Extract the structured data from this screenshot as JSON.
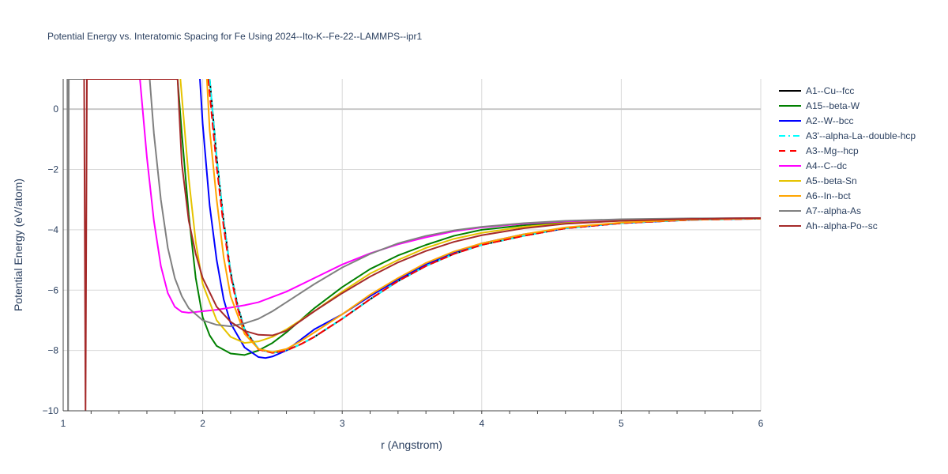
{
  "chart_data": {
    "type": "line",
    "title": "Potential Energy vs. Interatomic Spacing for Fe Using 2024--Ito-K--Fe-22--LAMMPS--ipr1",
    "xlabel": "r (Angstrom)",
    "ylabel": "Potential Energy (eV/atom)",
    "xlim": [
      1,
      6
    ],
    "ylim": [
      -10,
      1
    ],
    "x_ticks": [
      1,
      2,
      3,
      4,
      5,
      6
    ],
    "y_ticks": [
      0,
      -2,
      -4,
      -6,
      -8,
      -10
    ],
    "y_tick_labels": [
      "0",
      "−2",
      "−4",
      "−6",
      "−8",
      "−10"
    ],
    "grid": true,
    "legend_position": "right",
    "series": [
      {
        "name": "A1--Cu--fcc",
        "color": "#000000",
        "dash": "solid",
        "x": [
          2.05,
          2.1,
          2.15,
          2.2,
          2.25,
          2.3,
          2.4,
          2.5,
          2.6,
          2.7,
          2.8,
          3.0,
          3.2,
          3.4,
          3.6,
          3.8,
          4.0,
          4.3,
          4.6,
          5.0,
          5.5,
          6.0
        ],
        "y": [
          1.0,
          -1.6,
          -3.7,
          -5.4,
          -6.5,
          -7.3,
          -7.95,
          -8.08,
          -8.0,
          -7.8,
          -7.55,
          -6.95,
          -6.3,
          -5.7,
          -5.2,
          -4.8,
          -4.5,
          -4.2,
          -3.95,
          -3.78,
          -3.67,
          -3.63
        ]
      },
      {
        "name": "A15--beta-W",
        "color": "#008000",
        "dash": "solid",
        "x": [
          1.82,
          1.85,
          1.9,
          1.95,
          2.0,
          2.05,
          2.1,
          2.2,
          2.3,
          2.4,
          2.5,
          2.6,
          2.7,
          2.8,
          3.0,
          3.2,
          3.4,
          3.6,
          3.8,
          4.0,
          4.3,
          4.6,
          5.0,
          5.5,
          6.0
        ],
        "y": [
          1.0,
          -0.8,
          -3.5,
          -5.6,
          -6.9,
          -7.5,
          -7.85,
          -8.1,
          -8.15,
          -8.0,
          -7.75,
          -7.4,
          -7.0,
          -6.6,
          -5.9,
          -5.3,
          -4.85,
          -4.5,
          -4.2,
          -4.0,
          -3.85,
          -3.75,
          -3.68,
          -3.63,
          -3.61
        ]
      },
      {
        "name": "A2--W--bcc",
        "color": "#0000ff",
        "dash": "solid",
        "x": [
          1.98,
          2.0,
          2.05,
          2.1,
          2.15,
          2.2,
          2.3,
          2.4,
          2.45,
          2.5,
          2.6,
          2.7,
          2.8,
          3.0,
          3.2,
          3.4,
          3.6,
          3.8,
          4.0,
          4.3,
          4.6,
          5.0,
          5.5,
          6.0
        ],
        "y": [
          1.0,
          -0.5,
          -3.2,
          -5.0,
          -6.3,
          -7.1,
          -7.9,
          -8.22,
          -8.25,
          -8.2,
          -8.0,
          -7.65,
          -7.3,
          -6.8,
          -6.2,
          -5.65,
          -5.15,
          -4.75,
          -4.45,
          -4.15,
          -3.95,
          -3.78,
          -3.67,
          -3.62
        ]
      },
      {
        "name": "A3'--alpha-La--double-hcp",
        "color": "#00ffff",
        "dash": "dashdot",
        "x": [
          2.05,
          2.1,
          2.15,
          2.2,
          2.25,
          2.3,
          2.4,
          2.5,
          2.6,
          2.7,
          2.8,
          3.0,
          3.2,
          3.4,
          3.6,
          3.8,
          4.0,
          4.3,
          4.6,
          5.0,
          5.5,
          6.0
        ],
        "y": [
          1.0,
          -1.6,
          -3.7,
          -5.4,
          -6.5,
          -7.3,
          -7.95,
          -8.08,
          -8.0,
          -7.8,
          -7.55,
          -6.95,
          -6.3,
          -5.7,
          -5.2,
          -4.8,
          -4.5,
          -4.2,
          -3.95,
          -3.78,
          -3.67,
          -3.63
        ]
      },
      {
        "name": "A3--Mg--hcp",
        "color": "#ff0000",
        "dash": "dash",
        "x": [
          2.04,
          2.1,
          2.15,
          2.2,
          2.25,
          2.3,
          2.4,
          2.5,
          2.6,
          2.7,
          2.8,
          3.0,
          3.2,
          3.4,
          3.6,
          3.8,
          4.0,
          4.3,
          4.6,
          5.0,
          5.5,
          6.0
        ],
        "y": [
          1.0,
          -1.9,
          -3.9,
          -5.5,
          -6.6,
          -7.35,
          -7.97,
          -8.08,
          -8.0,
          -7.8,
          -7.55,
          -6.95,
          -6.3,
          -5.7,
          -5.2,
          -4.8,
          -4.5,
          -4.2,
          -3.95,
          -3.78,
          -3.67,
          -3.63
        ]
      },
      {
        "name": "A4--C--dc",
        "color": "#ff00ff",
        "dash": "solid",
        "x": [
          1.55,
          1.6,
          1.65,
          1.7,
          1.75,
          1.8,
          1.85,
          1.9,
          2.0,
          2.1,
          2.2,
          2.3,
          2.4,
          2.6,
          2.8,
          3.0,
          3.2,
          3.4,
          3.6,
          3.8,
          4.0,
          4.3,
          4.6,
          5.0,
          5.5,
          6.0
        ],
        "y": [
          1.0,
          -1.6,
          -3.7,
          -5.2,
          -6.1,
          -6.55,
          -6.72,
          -6.75,
          -6.7,
          -6.65,
          -6.58,
          -6.5,
          -6.4,
          -6.05,
          -5.6,
          -5.15,
          -4.78,
          -4.48,
          -4.25,
          -4.05,
          -3.92,
          -3.8,
          -3.72,
          -3.66,
          -3.63,
          -3.61
        ]
      },
      {
        "name": "A5--beta-Sn",
        "color": "#e6c300",
        "dash": "solid",
        "x": [
          1.84,
          1.9,
          1.95,
          2.0,
          2.1,
          2.2,
          2.3,
          2.4,
          2.5,
          2.6,
          2.8,
          3.0,
          3.2,
          3.4,
          3.6,
          3.8,
          4.0,
          4.3,
          4.6,
          5.0,
          5.5,
          6.0
        ],
        "y": [
          1.0,
          -2.3,
          -4.4,
          -5.8,
          -7.0,
          -7.55,
          -7.75,
          -7.7,
          -7.55,
          -7.3,
          -6.7,
          -6.05,
          -5.45,
          -5.0,
          -4.6,
          -4.3,
          -4.1,
          -3.9,
          -3.78,
          -3.7,
          -3.64,
          -3.62
        ]
      },
      {
        "name": "A6--In--bct",
        "color": "#ffa500",
        "dash": "solid",
        "x": [
          2.03,
          2.05,
          2.1,
          2.15,
          2.2,
          2.3,
          2.4,
          2.5,
          2.6,
          2.7,
          2.8,
          3.0,
          3.2,
          3.4,
          3.6,
          3.8,
          4.0,
          4.3,
          4.6,
          5.0,
          5.5,
          6.0
        ],
        "y": [
          1.0,
          -0.7,
          -3.0,
          -4.9,
          -6.2,
          -7.45,
          -7.95,
          -8.05,
          -7.95,
          -7.7,
          -7.4,
          -6.8,
          -6.15,
          -5.6,
          -5.1,
          -4.72,
          -4.45,
          -4.15,
          -3.92,
          -3.76,
          -3.66,
          -3.62
        ]
      },
      {
        "name": "A7--alpha-As",
        "color": "#808080",
        "dash": "solid",
        "x": [
          1.03,
          1.035,
          1.04,
          1.62,
          1.65,
          1.7,
          1.75,
          1.8,
          1.85,
          1.9,
          2.0,
          2.1,
          2.2,
          2.3,
          2.4,
          2.5,
          2.6,
          2.8,
          3.0,
          3.2,
          3.4,
          3.6,
          3.8,
          4.0,
          4.3,
          4.6,
          5.0,
          5.5,
          6.0
        ],
        "y": [
          1.0,
          -10.0,
          1.0,
          1.0,
          -0.8,
          -3.0,
          -4.6,
          -5.6,
          -6.2,
          -6.6,
          -7.0,
          -7.15,
          -7.2,
          -7.1,
          -6.95,
          -6.7,
          -6.4,
          -5.8,
          -5.25,
          -4.8,
          -4.45,
          -4.2,
          -4.02,
          -3.9,
          -3.78,
          -3.7,
          -3.65,
          -3.62,
          -3.61
        ]
      },
      {
        "name": "Ah--alpha-Po--sc",
        "color": "#a52a2a",
        "dash": "solid",
        "x": [
          1.15,
          1.16,
          1.17,
          1.82,
          1.85,
          1.9,
          1.95,
          2.0,
          2.1,
          2.2,
          2.3,
          2.4,
          2.5,
          2.6,
          2.8,
          3.0,
          3.2,
          3.4,
          3.6,
          3.8,
          4.0,
          4.3,
          4.6,
          5.0,
          5.5,
          6.0
        ],
        "y": [
          1.0,
          -10.0,
          1.0,
          1.0,
          -1.8,
          -3.7,
          -4.8,
          -5.6,
          -6.55,
          -7.05,
          -7.35,
          -7.48,
          -7.5,
          -7.35,
          -6.7,
          -6.1,
          -5.55,
          -5.08,
          -4.7,
          -4.4,
          -4.18,
          -3.95,
          -3.8,
          -3.7,
          -3.64,
          -3.61
        ]
      }
    ]
  }
}
